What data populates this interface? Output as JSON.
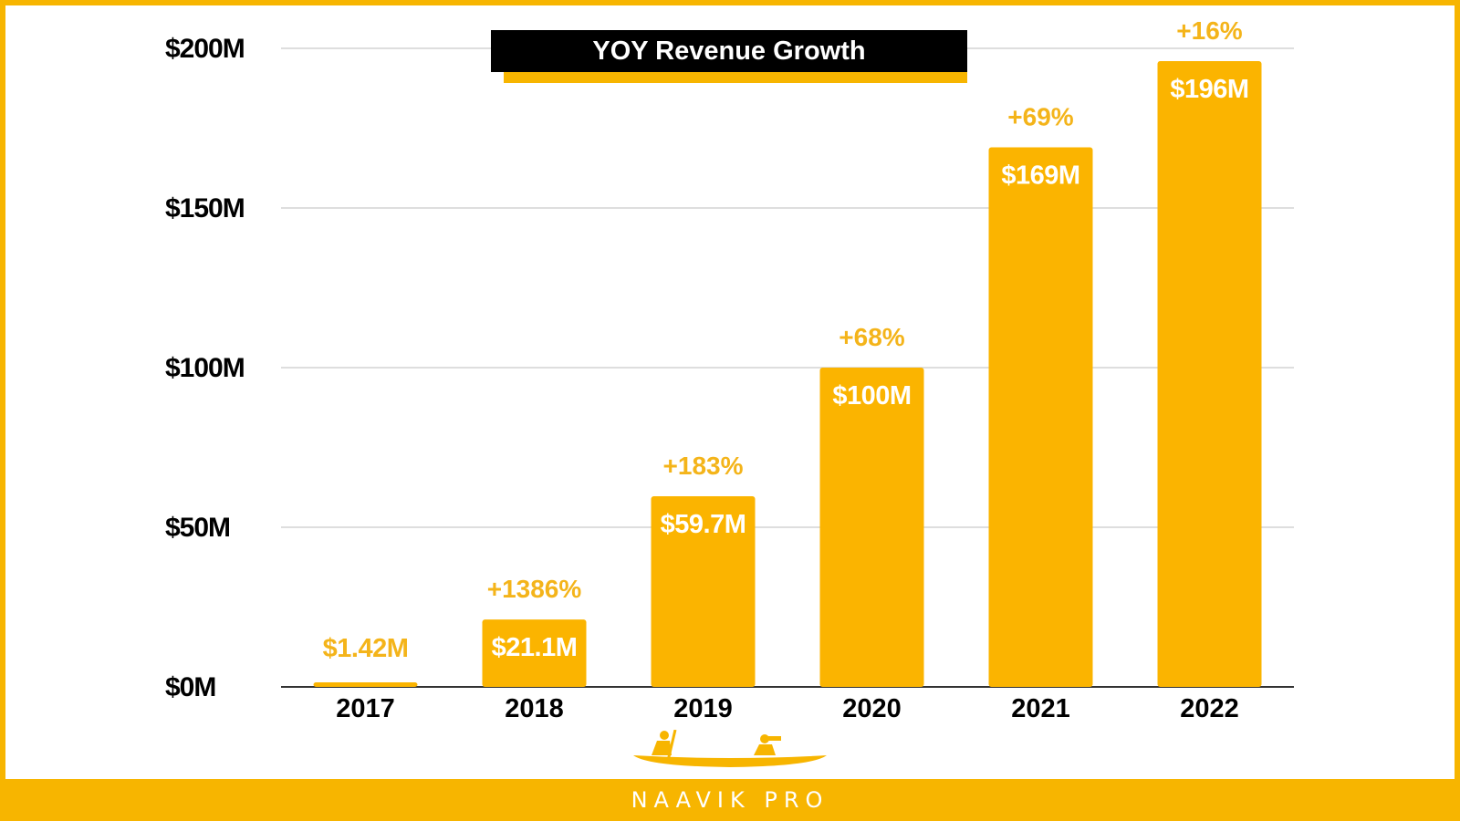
{
  "colors": {
    "accent": "#f7b500",
    "title_bg": "#000000",
    "bar": "#fbb400",
    "bar_label": "#ffffff",
    "growth_label": "#f4b41a",
    "axis_text": "#000000",
    "grid": "#d4d4d4"
  },
  "chart_data": {
    "type": "bar",
    "title": "YOY Revenue Growth",
    "xlabel": "",
    "ylabel": "",
    "categories": [
      "2017",
      "2018",
      "2019",
      "2020",
      "2021",
      "2022"
    ],
    "values": [
      1.42,
      21.1,
      59.7,
      100,
      169,
      196
    ],
    "value_labels": [
      "$1.42M",
      "$21.1M",
      "$59.7M",
      "$100M",
      "$169M",
      "$196M"
    ],
    "growth_labels": [
      "",
      "+1386%",
      "+183%",
      "+68%",
      "+69%",
      "+16%"
    ],
    "ylim": [
      0,
      200
    ],
    "yticks": [
      0,
      50,
      100,
      150,
      200
    ],
    "ytick_labels": [
      "$0M",
      "$50M",
      "$100M",
      "$150M",
      "$200M"
    ],
    "grid": true,
    "legend": false
  },
  "footer": {
    "brand": "NAAVIK PRO",
    "logo_icon": "boat-rowers-icon"
  }
}
